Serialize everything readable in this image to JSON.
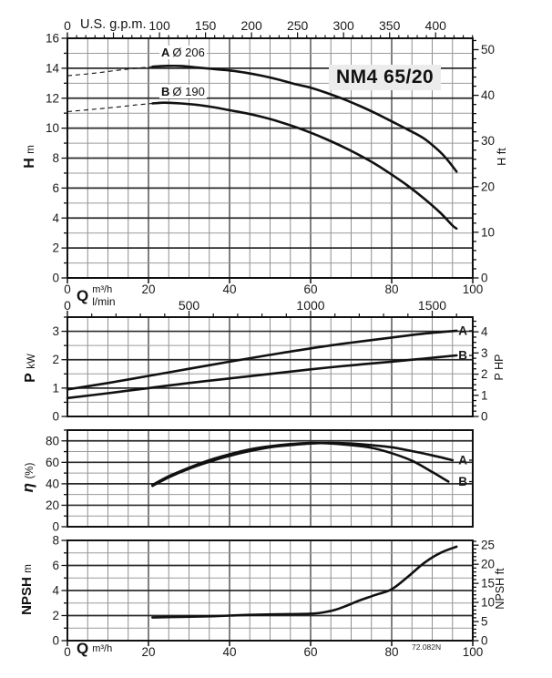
{
  "title": "NM4 65/20",
  "code": "72.082N",
  "chart_data": [
    {
      "id": "head",
      "type": "line",
      "title": "NM4 65/20",
      "x": {
        "sym": "Q",
        "unit": "m³/h",
        "min": 0,
        "max": 100,
        "grid_step": 5,
        "major_every": 20,
        "tick_labels": [
          0,
          20,
          40,
          60,
          80,
          100
        ]
      },
      "x_top": {
        "label": "U.S. g.p.m.",
        "zero_label": "0",
        "factor": 0.2271,
        "minor_step": 10,
        "major_step": 50,
        "max": 440,
        "labels": [
          100,
          150,
          200,
          250,
          300,
          350,
          400
        ]
      },
      "y": {
        "sym": "H",
        "unit": "m",
        "min": 0,
        "max": 16,
        "minor_step": 1,
        "major_step": 2,
        "labels": [
          0,
          2,
          4,
          6,
          8,
          10,
          12,
          14,
          16
        ]
      },
      "y_right": {
        "sym": "H",
        "unit": "ft",
        "factor": 0.3048,
        "minor_step": 2,
        "major_step": 10,
        "labels": [
          0,
          10,
          20,
          30,
          40,
          50
        ]
      },
      "series": [
        {
          "name": "A",
          "diameter": "Ø 206",
          "end_label": false,
          "points": [
            [
              21,
              14.1
            ],
            [
              24,
              14.15
            ],
            [
              28,
              14.15
            ],
            [
              32,
              14.05
            ],
            [
              36,
              13.95
            ],
            [
              40,
              13.85
            ],
            [
              44,
              13.7
            ],
            [
              48,
              13.5
            ],
            [
              52,
              13.25
            ],
            [
              56,
              12.95
            ],
            [
              60,
              12.7
            ],
            [
              64,
              12.35
            ],
            [
              68,
              11.95
            ],
            [
              72,
              11.5
            ],
            [
              76,
              11.0
            ],
            [
              80,
              10.45
            ],
            [
              84,
              9.9
            ],
            [
              88,
              9.3
            ],
            [
              92,
              8.4
            ],
            [
              94,
              7.8
            ],
            [
              96,
              7.1
            ]
          ],
          "dashed_points": [
            [
              0,
              13.5
            ],
            [
              6,
              13.65
            ],
            [
              12,
              13.85
            ],
            [
              17,
              14.0
            ],
            [
              21,
              14.1
            ]
          ]
        },
        {
          "name": "B",
          "diameter": "Ø 190",
          "end_label": false,
          "points": [
            [
              21,
              11.65
            ],
            [
              24,
              11.7
            ],
            [
              28,
              11.65
            ],
            [
              32,
              11.55
            ],
            [
              36,
              11.4
            ],
            [
              40,
              11.2
            ],
            [
              44,
              11.0
            ],
            [
              48,
              10.75
            ],
            [
              52,
              10.45
            ],
            [
              56,
              10.1
            ],
            [
              60,
              9.7
            ],
            [
              64,
              9.25
            ],
            [
              68,
              8.75
            ],
            [
              72,
              8.2
            ],
            [
              76,
              7.6
            ],
            [
              80,
              6.9
            ],
            [
              84,
              6.15
            ],
            [
              88,
              5.3
            ],
            [
              92,
              4.35
            ],
            [
              95,
              3.5
            ],
            [
              96,
              3.3
            ]
          ],
          "dashed_points": [
            [
              0,
              11.1
            ],
            [
              6,
              11.25
            ],
            [
              12,
              11.4
            ],
            [
              17,
              11.55
            ],
            [
              21,
              11.65
            ]
          ]
        }
      ]
    },
    {
      "id": "power",
      "type": "line",
      "x": {
        "min": 0,
        "max": 100,
        "grid_step": 5,
        "major_every": 20
      },
      "x_top": {
        "unit": "l/min",
        "zero_label": "0",
        "factor": 0.06,
        "minor_step": 100,
        "major_step": 500,
        "max": 1600,
        "labels": [
          500,
          1000,
          1500
        ]
      },
      "y": {
        "sym": "P",
        "unit": "kW",
        "min": 0,
        "max": 3.5,
        "minor_step": 0.5,
        "major_step": 1,
        "labels": [
          0,
          1,
          2,
          3
        ]
      },
      "y_right": {
        "sym": "P",
        "unit": "HP",
        "factor": 0.7457,
        "minor_step": 0.25,
        "major_step": 1,
        "labels": [
          0,
          1,
          2,
          3,
          4
        ]
      },
      "series": [
        {
          "name": "A",
          "end_label": true,
          "points": [
            [
              0,
              0.95
            ],
            [
              10,
              1.18
            ],
            [
              20,
              1.43
            ],
            [
              30,
              1.68
            ],
            [
              40,
              1.93
            ],
            [
              50,
              2.17
            ],
            [
              60,
              2.4
            ],
            [
              70,
              2.6
            ],
            [
              80,
              2.78
            ],
            [
              88,
              2.92
            ],
            [
              96,
              3.02
            ]
          ]
        },
        {
          "name": "B",
          "end_label": true,
          "points": [
            [
              0,
              0.65
            ],
            [
              10,
              0.82
            ],
            [
              20,
              1.0
            ],
            [
              30,
              1.18
            ],
            [
              40,
              1.34
            ],
            [
              50,
              1.5
            ],
            [
              60,
              1.66
            ],
            [
              70,
              1.8
            ],
            [
              80,
              1.93
            ],
            [
              88,
              2.04
            ],
            [
              96,
              2.15
            ]
          ]
        }
      ]
    },
    {
      "id": "efficiency",
      "type": "line",
      "x": {
        "min": 0,
        "max": 100,
        "grid_step": 5,
        "major_every": 20
      },
      "y": {
        "sym": "η",
        "unit": "(%)",
        "min": 0,
        "max": 90,
        "minor_step": 10,
        "major_step": 20,
        "labels": [
          0,
          20,
          40,
          60,
          80
        ]
      },
      "series": [
        {
          "name": "A",
          "end_label": true,
          "points": [
            [
              21,
              38
            ],
            [
              25,
              46
            ],
            [
              30,
              54
            ],
            [
              35,
              60.5
            ],
            [
              40,
              66
            ],
            [
              45,
              70.5
            ],
            [
              50,
              74
            ],
            [
              55,
              76
            ],
            [
              60,
              77.5
            ],
            [
              65,
              78
            ],
            [
              70,
              77.5
            ],
            [
              75,
              76
            ],
            [
              80,
              74
            ],
            [
              85,
              70.5
            ],
            [
              90,
              66.5
            ],
            [
              95,
              62
            ]
          ]
        },
        {
          "name": "B",
          "end_label": true,
          "points": [
            [
              21,
              39
            ],
            [
              25,
              47
            ],
            [
              30,
              55
            ],
            [
              35,
              62
            ],
            [
              40,
              67.5
            ],
            [
              45,
              72
            ],
            [
              50,
              75
            ],
            [
              55,
              77
            ],
            [
              60,
              78
            ],
            [
              64,
              77.8
            ],
            [
              70,
              76
            ],
            [
              75,
              73.5
            ],
            [
              80,
              68.5
            ],
            [
              85,
              61.5
            ],
            [
              90,
              51
            ],
            [
              94,
              42
            ]
          ]
        }
      ]
    },
    {
      "id": "npsh",
      "type": "line",
      "x": {
        "sym": "Q",
        "unit": "m³/h",
        "min": 0,
        "max": 100,
        "grid_step": 5,
        "major_every": 20,
        "tick_labels": [
          0,
          20,
          40,
          60,
          80,
          100
        ]
      },
      "y": {
        "sym": "NPSH",
        "unit": "m",
        "min": 0,
        "max": 8,
        "minor_step": 1,
        "major_step": 2,
        "labels": [
          0,
          2,
          4,
          6,
          8
        ]
      },
      "y_right": {
        "sym": "NPSH",
        "unit": "ft",
        "factor": 0.3048,
        "minor_step": 1,
        "major_step": 5,
        "labels": [
          0,
          5,
          10,
          15,
          20,
          25
        ]
      },
      "series": [
        {
          "name": "NPSH",
          "end_label": false,
          "points": [
            [
              21,
              1.85
            ],
            [
              28,
              1.9
            ],
            [
              36,
              1.95
            ],
            [
              44,
              2.05
            ],
            [
              52,
              2.1
            ],
            [
              60,
              2.15
            ],
            [
              63,
              2.25
            ],
            [
              66,
              2.45
            ],
            [
              69,
              2.8
            ],
            [
              72,
              3.2
            ],
            [
              76,
              3.65
            ],
            [
              80,
              4.1
            ],
            [
              84,
              5.1
            ],
            [
              88,
              6.2
            ],
            [
              92,
              7.0
            ],
            [
              96,
              7.5
            ]
          ]
        }
      ]
    }
  ]
}
